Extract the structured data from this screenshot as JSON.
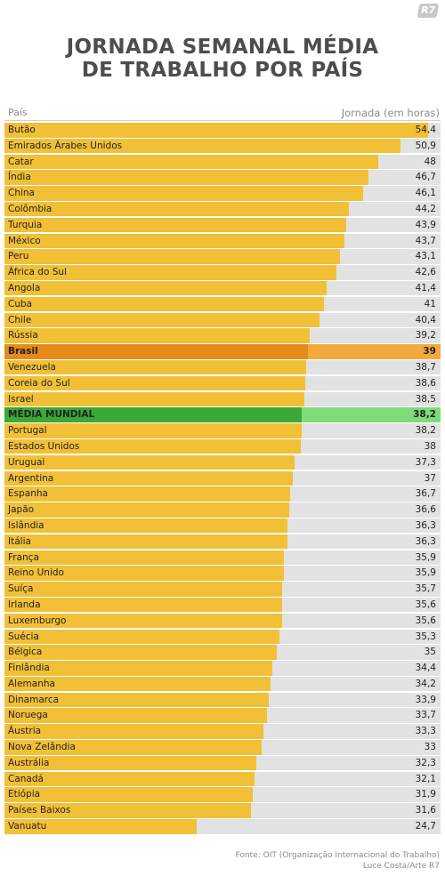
{
  "logo": "R7",
  "title_lines": [
    "JORNADA SEMANAL MÉDIA",
    "DE TRABALHO POR PAÍS"
  ],
  "header": {
    "left": "País",
    "right": "Jornada (em horas)"
  },
  "source": {
    "line1": "Fonte: OIT (Organização Internacional do Trabalho)",
    "line2": "Luce Costa/Arte R7"
  },
  "colors": {
    "bar": "#f2c037",
    "track": "#e2e2e2",
    "brasil_bar": "#e88a1a",
    "brasil_track": "#f3a93b",
    "world_bar": "#3aa935",
    "world_track": "#7ddc78"
  },
  "chart_data": {
    "type": "bar",
    "orientation": "horizontal",
    "xlim": [
      0,
      56
    ],
    "categories": [
      "Butão",
      "Emirados Árabes Unidos",
      "Catar",
      "Índia",
      "China",
      "Colômbia",
      "Turquia",
      "México",
      "Peru",
      "África do Sul",
      "Angola",
      "Cuba",
      "Chile",
      "Rússia",
      "Brasil",
      "Venezuela",
      "Coreia do Sul",
      "Israel",
      "MÉDIA MUNDIAL",
      "Portugal",
      "Estados Unidos",
      "Uruguai",
      "Argentina",
      "Espanha",
      "Japão",
      "Islândia",
      "Itália",
      "França",
      "Reino Unido",
      "Suíça",
      "Irlanda",
      "Luxemburgo",
      "Suécia",
      "Bélgica",
      "Finlândia",
      "Alemanha",
      "Dinamarca",
      "Noruega",
      "Áustria",
      "Nova Zelândia",
      "Austrália",
      "Canadá",
      "Etiópia",
      "Países Baixos",
      "Vanuatu"
    ],
    "values": [
      54.4,
      50.9,
      48,
      46.7,
      46.1,
      44.2,
      43.9,
      43.7,
      43.1,
      42.6,
      41.4,
      41,
      40.4,
      39.2,
      39,
      38.7,
      38.6,
      38.5,
      38.2,
      38.2,
      38,
      37.3,
      37,
      36.7,
      36.6,
      36.3,
      36.3,
      35.9,
      35.9,
      35.7,
      35.6,
      35.6,
      35.3,
      35,
      34.4,
      34.2,
      33.9,
      33.7,
      33.3,
      33,
      32.3,
      32.1,
      31.9,
      31.6,
      24.7
    ],
    "value_labels": [
      "54,4",
      "50,9",
      "48",
      "46,7",
      "46,1",
      "44,2",
      "43,9",
      "43,7",
      "43,1",
      "42,6",
      "41,4",
      "41",
      "40,4",
      "39,2",
      "39",
      "38,7",
      "38,6",
      "38,5",
      "38,2",
      "38,2",
      "38",
      "37,3",
      "37",
      "36,7",
      "36,6",
      "36,3",
      "36,3",
      "35,9",
      "35,9",
      "35,7",
      "35,6",
      "35,6",
      "35,3",
      "35",
      "34,4",
      "34,2",
      "33,9",
      "33,7",
      "33,3",
      "33",
      "32,3",
      "32,1",
      "31,9",
      "31,6",
      "24,7"
    ],
    "highlights": {
      "Brasil": "brasil",
      "MÉDIA MUNDIAL": "world"
    }
  }
}
